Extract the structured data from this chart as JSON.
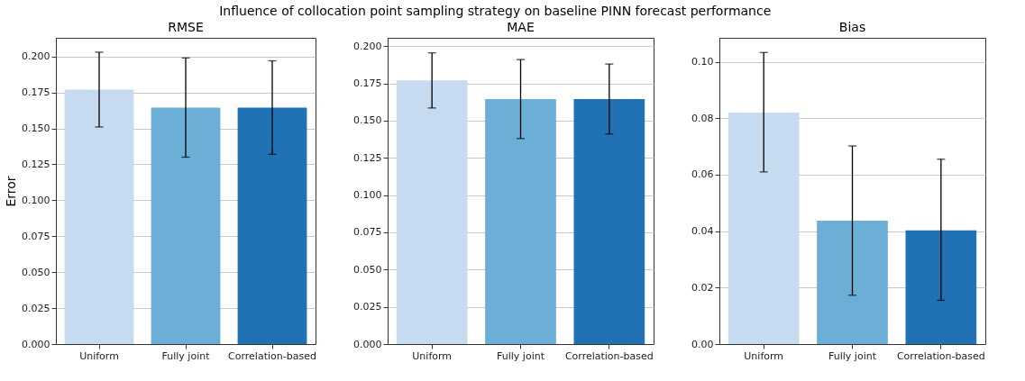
{
  "chart_data": [
    {
      "type": "bar",
      "title": "RMSE",
      "ylabel": "Error",
      "annotations": [
        "Influence of collocation point sampling strategy on baseline PINN forecast performance"
      ],
      "categories": [
        "Uniform",
        "Fully joint",
        "Correlation-based"
      ],
      "values": [
        0.177,
        0.1645,
        0.1645
      ],
      "colors": [
        "#c6dbef",
        "#6baed6",
        "#2171b5"
      ],
      "errors": [
        [
          0.151,
          0.203
        ],
        [
          0.13,
          0.199
        ],
        [
          0.132,
          0.197
        ]
      ],
      "ylim": [
        0,
        0.213
      ],
      "yticks": [
        {
          "value": 0,
          "label": "0.000"
        },
        {
          "value": 0.025,
          "label": "0.025"
        },
        {
          "value": 0.05,
          "label": "0.050"
        },
        {
          "value": 0.075,
          "label": "0.075"
        },
        {
          "value": 0.1,
          "label": "0.100"
        },
        {
          "value": 0.125,
          "label": "0.125"
        },
        {
          "value": 0.15,
          "label": "0.150"
        },
        {
          "value": 0.175,
          "label": "0.175"
        },
        {
          "value": 0.2,
          "label": "0.200"
        }
      ],
      "grid": "y"
    },
    {
      "type": "bar",
      "title": "MAE",
      "categories": [
        "Uniform",
        "Fully joint",
        "Correlation-based"
      ],
      "values": [
        0.177,
        0.1645,
        0.1645
      ],
      "colors": [
        "#c6dbef",
        "#6baed6",
        "#2171b5"
      ],
      "errors": [
        [
          0.1585,
          0.1955
        ],
        [
          0.138,
          0.191
        ],
        [
          0.141,
          0.188
        ]
      ],
      "ylim": [
        0,
        0.2056
      ],
      "yticks": [
        {
          "value": 0,
          "label": "0.000"
        },
        {
          "value": 0.025,
          "label": "0.025"
        },
        {
          "value": 0.05,
          "label": "0.050"
        },
        {
          "value": 0.075,
          "label": "0.075"
        },
        {
          "value": 0.1,
          "label": "0.100"
        },
        {
          "value": 0.125,
          "label": "0.125"
        },
        {
          "value": 0.15,
          "label": "0.150"
        },
        {
          "value": 0.175,
          "label": "0.175"
        },
        {
          "value": 0.2,
          "label": "0.200"
        }
      ],
      "grid": "y"
    },
    {
      "type": "bar",
      "title": "Bias",
      "categories": [
        "Uniform",
        "Fully joint",
        "Correlation-based"
      ],
      "values": [
        0.082,
        0.0437,
        0.0403
      ],
      "colors": [
        "#c6dbef",
        "#6baed6",
        "#2171b5"
      ],
      "errors": [
        [
          0.061,
          0.1033
        ],
        [
          0.0173,
          0.0702
        ],
        [
          0.0155,
          0.0655
        ]
      ],
      "ylim": [
        0,
        0.1085
      ],
      "yticks": [
        {
          "value": 0,
          "label": "0.00"
        },
        {
          "value": 0.02,
          "label": "0.02"
        },
        {
          "value": 0.04,
          "label": "0.04"
        },
        {
          "value": 0.06,
          "label": "0.06"
        },
        {
          "value": 0.08,
          "label": "0.08"
        },
        {
          "value": 0.1,
          "label": "0.10"
        }
      ],
      "grid": "y"
    }
  ]
}
